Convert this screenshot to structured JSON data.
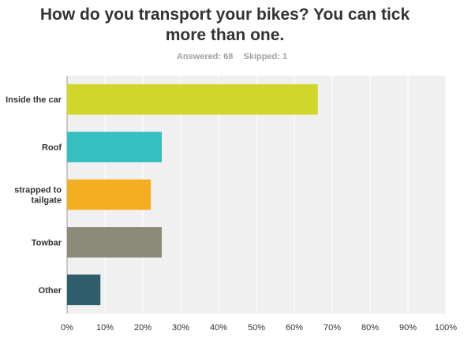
{
  "title": "How do you transport your bikes? You can tick more than one.",
  "meta": {
    "answered": "Answered: 68",
    "skipped": "Skipped: 1"
  },
  "colors": {
    "plot_bg": "#f0f0f0",
    "grid": "#ffffff",
    "axis": "#9a9a9a",
    "label": "#333333"
  },
  "chart_data": {
    "type": "bar",
    "orientation": "horizontal",
    "categories": [
      "Inside the car",
      "Roof",
      "strapped to tailgate",
      "Towbar",
      "Other"
    ],
    "category_label_lines": [
      [
        "Inside the car"
      ],
      [
        "Roof"
      ],
      [
        "strapped to",
        "tailgate"
      ],
      [
        "Towbar"
      ],
      [
        "Other"
      ]
    ],
    "values": [
      66.2,
      25.0,
      22.1,
      25.0,
      8.8
    ],
    "bar_colors": [
      "#d0d62a",
      "#35bfc1",
      "#f4ae21",
      "#8c8b79",
      "#2e5e6b"
    ],
    "xlim": [
      0,
      100
    ],
    "xticks": [
      "0%",
      "10%",
      "20%",
      "30%",
      "40%",
      "50%",
      "60%",
      "70%",
      "80%",
      "90%",
      "100%"
    ],
    "grid": true,
    "xlabel": "",
    "ylabel": ""
  }
}
